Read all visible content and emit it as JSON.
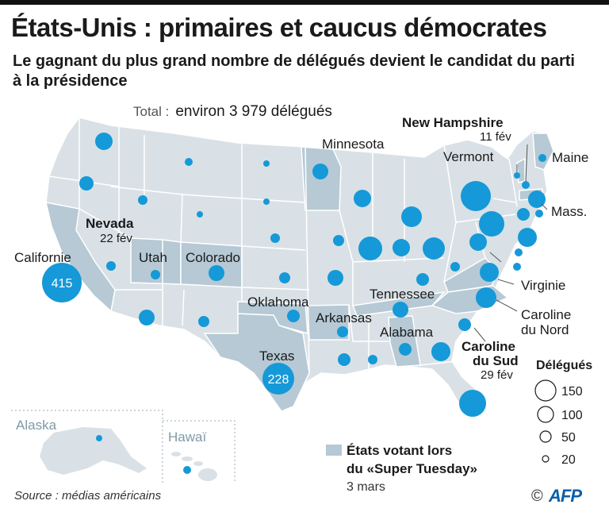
{
  "header": {
    "title": "États-Unis : primaires et caucus démocrates",
    "subtitle": "Le gagnant du plus grand nombre de délégués devient le candidat du parti à la présidence",
    "total_label": "Total :",
    "total_value": "environ 3 979 délégués"
  },
  "colors": {
    "land": "#d9e1e6",
    "super_tuesday": "#b6c9d4",
    "border": "#ffffff",
    "bubble": "#1599d8",
    "inset_label": "#7f9aa8"
  },
  "labels": {
    "new_hampshire": "New Hampshire",
    "new_hampshire_date": "11 fév",
    "minnesota": "Minnesota",
    "vermont": "Vermont",
    "maine": "Maine",
    "mass": "Mass.",
    "nevada": "Nevada",
    "nevada_date": "22 fév",
    "california": "Californie",
    "utah": "Utah",
    "colorado": "Colorado",
    "oklahoma": "Oklahoma",
    "tennessee": "Tennessee",
    "arkansas": "Arkansas",
    "alabama": "Alabama",
    "texas": "Texas",
    "virginia": "Virginie",
    "north_carolina_1": "Caroline",
    "north_carolina_2": "du Nord",
    "south_carolina_1": "Caroline",
    "south_carolina_2": "du Sud",
    "south_carolina_date": "29 fév",
    "alaska": "Alaska",
    "hawaii": "Hawaï"
  },
  "bubbles": {
    "california": "415",
    "texas": "228"
  },
  "legend": {
    "title": "Délégués",
    "sizes": [
      "150",
      "100",
      "50",
      "20"
    ],
    "super_tuesday_line1": "États votant lors",
    "super_tuesday_line2": "du «Super Tuesday»",
    "super_tuesday_date": "3 mars"
  },
  "footer": {
    "source": "Source : médias américains",
    "copyright": "©",
    "agency": "AFP"
  }
}
